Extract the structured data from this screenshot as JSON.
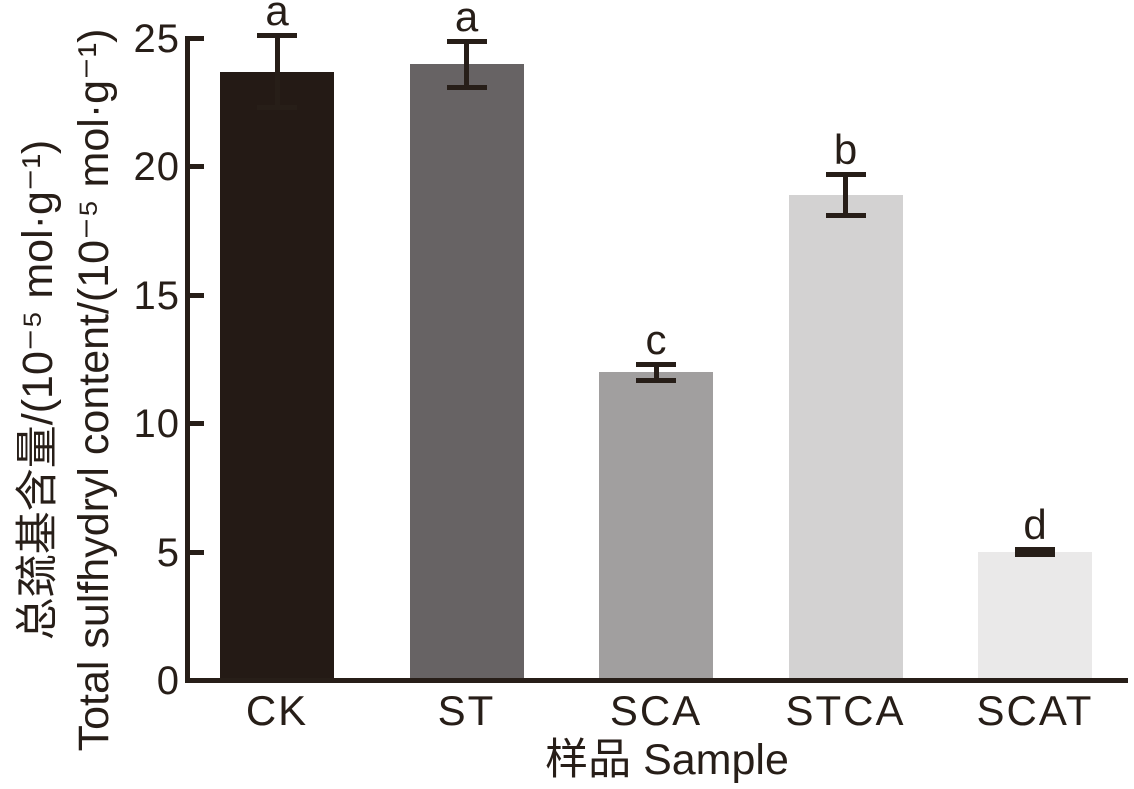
{
  "figure": {
    "background_color": "#ffffff",
    "ink_color": "#271e18"
  },
  "chart_data": {
    "type": "bar",
    "title": "",
    "categories": [
      "CK",
      "ST",
      "SCA",
      "STCA",
      "SCAT"
    ],
    "values": [
      23.6,
      23.9,
      11.9,
      18.8,
      4.9
    ],
    "errors": [
      1.5,
      1.0,
      0.4,
      0.9,
      0.2
    ],
    "significance_letters": [
      "a",
      "a",
      "c",
      "b",
      "d"
    ],
    "bar_colors": [
      "#241a15",
      "#676364",
      "#a19f9f",
      "#d3d2d2",
      "#eae9e9"
    ],
    "xlabel": "样品 Sample",
    "ylabel_line1_zh": "总巯基含量/(10⁻⁵ mol·g⁻¹)",
    "ylabel_line2_en": "Total sulfhydryl content/(10⁻⁵ mol·g⁻¹)",
    "ylim": [
      0,
      25
    ],
    "yticks": [
      0,
      5,
      10,
      15,
      20,
      25
    ],
    "grid": false,
    "legend": "none",
    "error_bar_style": "caps-both-ends",
    "bar_edge": "none"
  }
}
